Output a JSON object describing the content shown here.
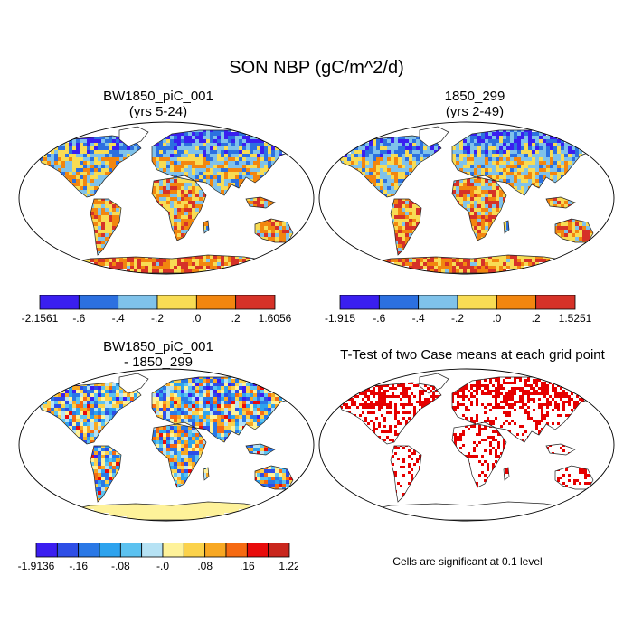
{
  "title": "SON NBP (gC/m^2/d)",
  "panels": [
    {
      "title_line1": "BW1850_piC_001",
      "title_line2": "(yrs 5-24)"
    },
    {
      "title_line1": "1850_299",
      "title_line2": "(yrs 2-49)"
    },
    {
      "title_line1": "BW1850_piC_001",
      "title_line2": "- 1850_299"
    },
    {
      "title_line1": "T-Test of two Case means at each grid point",
      "title_line2": ""
    }
  ],
  "colorbars": [
    {
      "labels": [
        "-2.1561",
        "-.6",
        "-.4",
        "-.2",
        ".0",
        ".2",
        "1.6056"
      ],
      "colors": [
        "#3a1ff0",
        "#2c70e0",
        "#7fc2ea",
        "#f8dc54",
        "#f2860f",
        "#d63228"
      ]
    },
    {
      "labels": [
        "-1.915",
        "-.6",
        "-.4",
        "-.2",
        ".0",
        ".2",
        "1.5251"
      ],
      "colors": [
        "#3a1ff0",
        "#2c70e0",
        "#7fc2ea",
        "#f8dc54",
        "#f2860f",
        "#d63228"
      ]
    },
    {
      "labels": [
        "-1.9136",
        "-.16",
        "-.08",
        "-.0",
        ".08",
        ".16",
        "1.22"
      ],
      "colors": [
        "#3b1ef0",
        "#2e4ee6",
        "#2a78e6",
        "#2ea3ee",
        "#5cc2f0",
        "#b6e2f4",
        "#fef29a",
        "#fbd24b",
        "#f8a823",
        "#f66a12",
        "#e80b0b",
        "#c9261d"
      ]
    }
  ],
  "note": "Cells are significant at 0.1 level",
  "map_colors": {
    "land_outline": "#222222",
    "significant": "#e60000"
  }
}
